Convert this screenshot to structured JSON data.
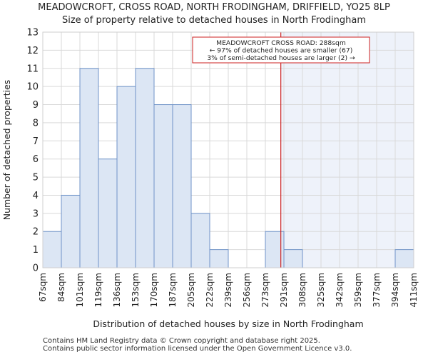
{
  "chart_data": {
    "type": "bar",
    "title": "MEADOWCROFT, CROSS ROAD, NORTH FRODINGHAM, DRIFFIELD, YO25 8LP",
    "subtitle": "Size of property relative to detached houses in North Frodingham",
    "xlabel": "Distribution of detached houses by size in North Frodingham",
    "ylabel": "Number of detached properties",
    "bin_edges": [
      "67sqm",
      "84sqm",
      "101sqm",
      "119sqm",
      "136sqm",
      "153sqm",
      "170sqm",
      "187sqm",
      "205sqm",
      "222sqm",
      "239sqm",
      "256sqm",
      "273sqm",
      "291sqm",
      "308sqm",
      "325sqm",
      "342sqm",
      "359sqm",
      "377sqm",
      "394sqm",
      "411sqm"
    ],
    "values": [
      2,
      4,
      11,
      6,
      10,
      11,
      9,
      9,
      3,
      1,
      0,
      0,
      2,
      1,
      0,
      0,
      0,
      0,
      0,
      1
    ],
    "ylim": [
      0,
      13
    ],
    "yticks": [
      "0",
      "1",
      "2",
      "3",
      "4",
      "5",
      "6",
      "7",
      "8",
      "9",
      "10",
      "11",
      "12",
      "13"
    ],
    "grid": true,
    "bar_fill": "#dce6f4",
    "bar_stroke": "#6f93c8",
    "marker": {
      "value_sqm": 288,
      "color": "#cc2222"
    },
    "highlight_fill": "#eef2fa",
    "annotation": {
      "lines": [
        "MEADOWCROFT CROSS ROAD: 288sqm",
        "← 97% of detached houses are smaller (67)",
        "3% of semi-detached houses are larger (2) →"
      ],
      "border_color": "#cc2222"
    }
  },
  "footer": {
    "line1": "Contains HM Land Registry data © Crown copyright and database right 2025.",
    "line2": "Contains public sector information licensed under the Open Government Licence v3.0."
  }
}
